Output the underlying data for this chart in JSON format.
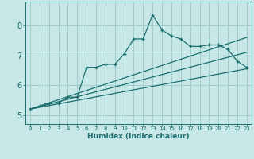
{
  "title": "",
  "xlabel": "Humidex (Indice chaleur)",
  "background_color": "#c8e8e8",
  "grid_color": "#a0cccc",
  "line_color": "#1a6e6e",
  "xlim": [
    -0.5,
    23.5
  ],
  "ylim": [
    4.7,
    8.8
  ],
  "xticks": [
    0,
    1,
    2,
    3,
    4,
    5,
    6,
    7,
    8,
    9,
    10,
    11,
    12,
    13,
    14,
    15,
    16,
    17,
    18,
    19,
    20,
    21,
    22,
    23
  ],
  "yticks": [
    5,
    6,
    7,
    8
  ],
  "main_x": [
    0,
    1,
    2,
    3,
    4,
    5,
    6,
    7,
    8,
    9,
    10,
    11,
    12,
    13,
    14,
    15,
    16,
    17,
    18,
    19,
    20,
    21,
    22,
    23
  ],
  "main_y": [
    5.2,
    5.3,
    5.4,
    5.4,
    5.6,
    5.6,
    6.6,
    6.6,
    6.7,
    6.7,
    7.05,
    7.55,
    7.55,
    8.35,
    7.85,
    7.65,
    7.55,
    7.3,
    7.3,
    7.35,
    7.35,
    7.2,
    6.8,
    6.6
  ],
  "line2_x": [
    0,
    23
  ],
  "line2_y": [
    5.2,
    7.6
  ],
  "line3_x": [
    0,
    23
  ],
  "line3_y": [
    5.2,
    7.1
  ],
  "line4_x": [
    0,
    23
  ],
  "line4_y": [
    5.2,
    6.55
  ]
}
